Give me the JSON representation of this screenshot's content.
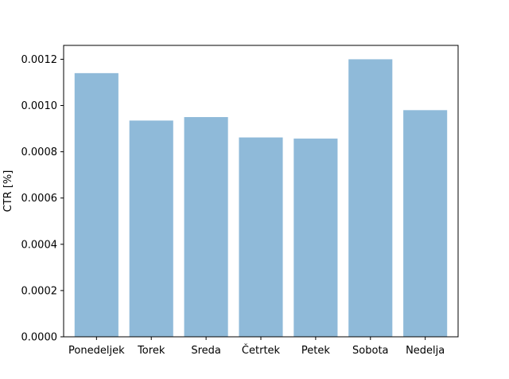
{
  "chart_data": {
    "type": "bar",
    "title": "",
    "xlabel": "",
    "ylabel": "CTR [%]",
    "categories": [
      "Ponedeljek",
      "Torek",
      "Sreda",
      "Četrtek",
      "Petek",
      "Sobota",
      "Nedelja"
    ],
    "values": [
      0.00114,
      0.000935,
      0.00095,
      0.000862,
      0.000857,
      0.0012,
      0.00098
    ],
    "ylim": [
      0,
      0.00126
    ],
    "yticks": [
      "0.0000",
      "0.0002",
      "0.0004",
      "0.0006",
      "0.0008",
      "0.0010",
      "0.0012"
    ],
    "grid": false,
    "colors": {
      "bar": "#8fbad9",
      "axis": "#000000"
    }
  }
}
